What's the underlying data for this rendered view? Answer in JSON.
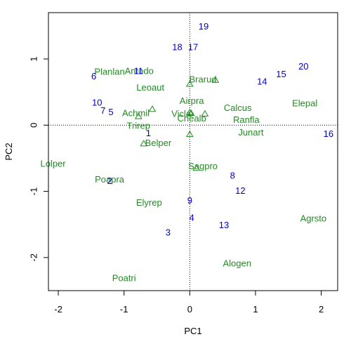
{
  "chart_data": {
    "type": "scatter",
    "title": "",
    "xlabel": "PC1",
    "ylabel": "PC2",
    "xlim": [
      -2.15,
      2.25
    ],
    "ylim": [
      -2.5,
      1.7
    ],
    "x_ticks": [
      -2,
      -1,
      0,
      1,
      2
    ],
    "y_ticks": [
      -2,
      -1,
      0,
      1
    ],
    "x_tick_labels": [
      "-2",
      "-1",
      "0",
      "1",
      "2"
    ],
    "y_tick_labels": [
      "-2",
      "-1",
      "0",
      "1"
    ],
    "reference_lines": {
      "x": 0,
      "y": 0,
      "style": "dotted"
    },
    "colors": {
      "sites": "#0000CC",
      "species": "#228B22",
      "axes": "#000000"
    },
    "sites": [
      {
        "label": "1",
        "x": -0.63,
        "y": -0.13
      },
      {
        "label": "2",
        "x": -1.22,
        "y": -0.85
      },
      {
        "label": "3",
        "x": -0.33,
        "y": -1.63
      },
      {
        "label": "4",
        "x": 0.03,
        "y": -1.41
      },
      {
        "label": "5",
        "x": -1.2,
        "y": 0.19
      },
      {
        "label": "6",
        "x": -1.46,
        "y": 0.73
      },
      {
        "label": "7",
        "x": -1.32,
        "y": 0.21
      },
      {
        "label": "8",
        "x": 0.65,
        "y": -0.77
      },
      {
        "label": "9",
        "x": 0.0,
        "y": -1.15
      },
      {
        "label": "10",
        "x": -1.41,
        "y": 0.33
      },
      {
        "label": "11",
        "x": -0.78,
        "y": 0.81
      },
      {
        "label": "12",
        "x": 0.77,
        "y": -1.0
      },
      {
        "label": "13",
        "x": 0.52,
        "y": -1.52
      },
      {
        "label": "14",
        "x": 1.1,
        "y": 0.65
      },
      {
        "label": "15",
        "x": 1.39,
        "y": 0.76
      },
      {
        "label": "16",
        "x": 2.11,
        "y": -0.14
      },
      {
        "label": "17",
        "x": 0.05,
        "y": 1.17
      },
      {
        "label": "18",
        "x": -0.19,
        "y": 1.17
      },
      {
        "label": "19",
        "x": 0.21,
        "y": 1.48
      },
      {
        "label": "20",
        "x": 1.73,
        "y": 0.88
      }
    ],
    "species": [
      {
        "label": "Achmil",
        "x": -0.82,
        "y": 0.17,
        "mx": -0.78,
        "my": 0.13
      },
      {
        "label": "Agrsto",
        "x": 1.88,
        "y": -1.42
      },
      {
        "label": "Airpra",
        "x": 0.03,
        "y": 0.36,
        "mx": 0.0,
        "my": 0.19
      },
      {
        "label": "Alogen",
        "x": 0.72,
        "y": -2.1
      },
      {
        "label": "Antodo",
        "x": -0.77,
        "y": 0.81
      },
      {
        "label": "Belper",
        "x": -0.48,
        "y": -0.28,
        "mx": -0.7,
        "my": -0.28
      },
      {
        "label": "Brarud",
        "x": 0.2,
        "y": 0.68,
        "mx": 0.39,
        "my": 0.68
      },
      {
        "label": "Calcus",
        "x": 0.73,
        "y": 0.25
      },
      {
        "label": "Chealb",
        "x": 0.03,
        "y": 0.09,
        "mx": 0.0,
        "my": -0.14
      },
      {
        "label": "Elepal",
        "x": 1.75,
        "y": 0.32
      },
      {
        "label": "Elyrep",
        "x": -0.62,
        "y": -1.18
      },
      {
        "label": "Junart",
        "x": 0.93,
        "y": -0.12
      },
      {
        "label": "Leoaut",
        "x": -0.6,
        "y": 0.56
      },
      {
        "label": "Lolper",
        "x": -2.08,
        "y": -0.59
      },
      {
        "label": "Planlan",
        "x": -1.22,
        "y": 0.8
      },
      {
        "label": "Poapra",
        "x": -1.22,
        "y": -0.83
      },
      {
        "label": "Poatri",
        "x": -1.0,
        "y": -2.32
      },
      {
        "label": "Ranfla",
        "x": 0.86,
        "y": 0.07,
        "mx": 0.23,
        "my": 0.17
      },
      {
        "label": "Sagpro",
        "x": 0.2,
        "y": -0.63,
        "mx": 0.1,
        "my": -0.65
      },
      {
        "label": "Trirep",
        "x": -0.78,
        "y": -0.02
      },
      {
        "label": "Vicla",
        "x": -0.13,
        "y": 0.16,
        "mx": 0.02,
        "my": 0.18
      },
      {
        "label": "",
        "x": 0.0,
        "y": 0.62,
        "mx": 0.0,
        "my": 0.62
      },
      {
        "label": "",
        "x": -0.57,
        "y": 0.24,
        "mx": -0.57,
        "my": 0.24
      }
    ]
  }
}
